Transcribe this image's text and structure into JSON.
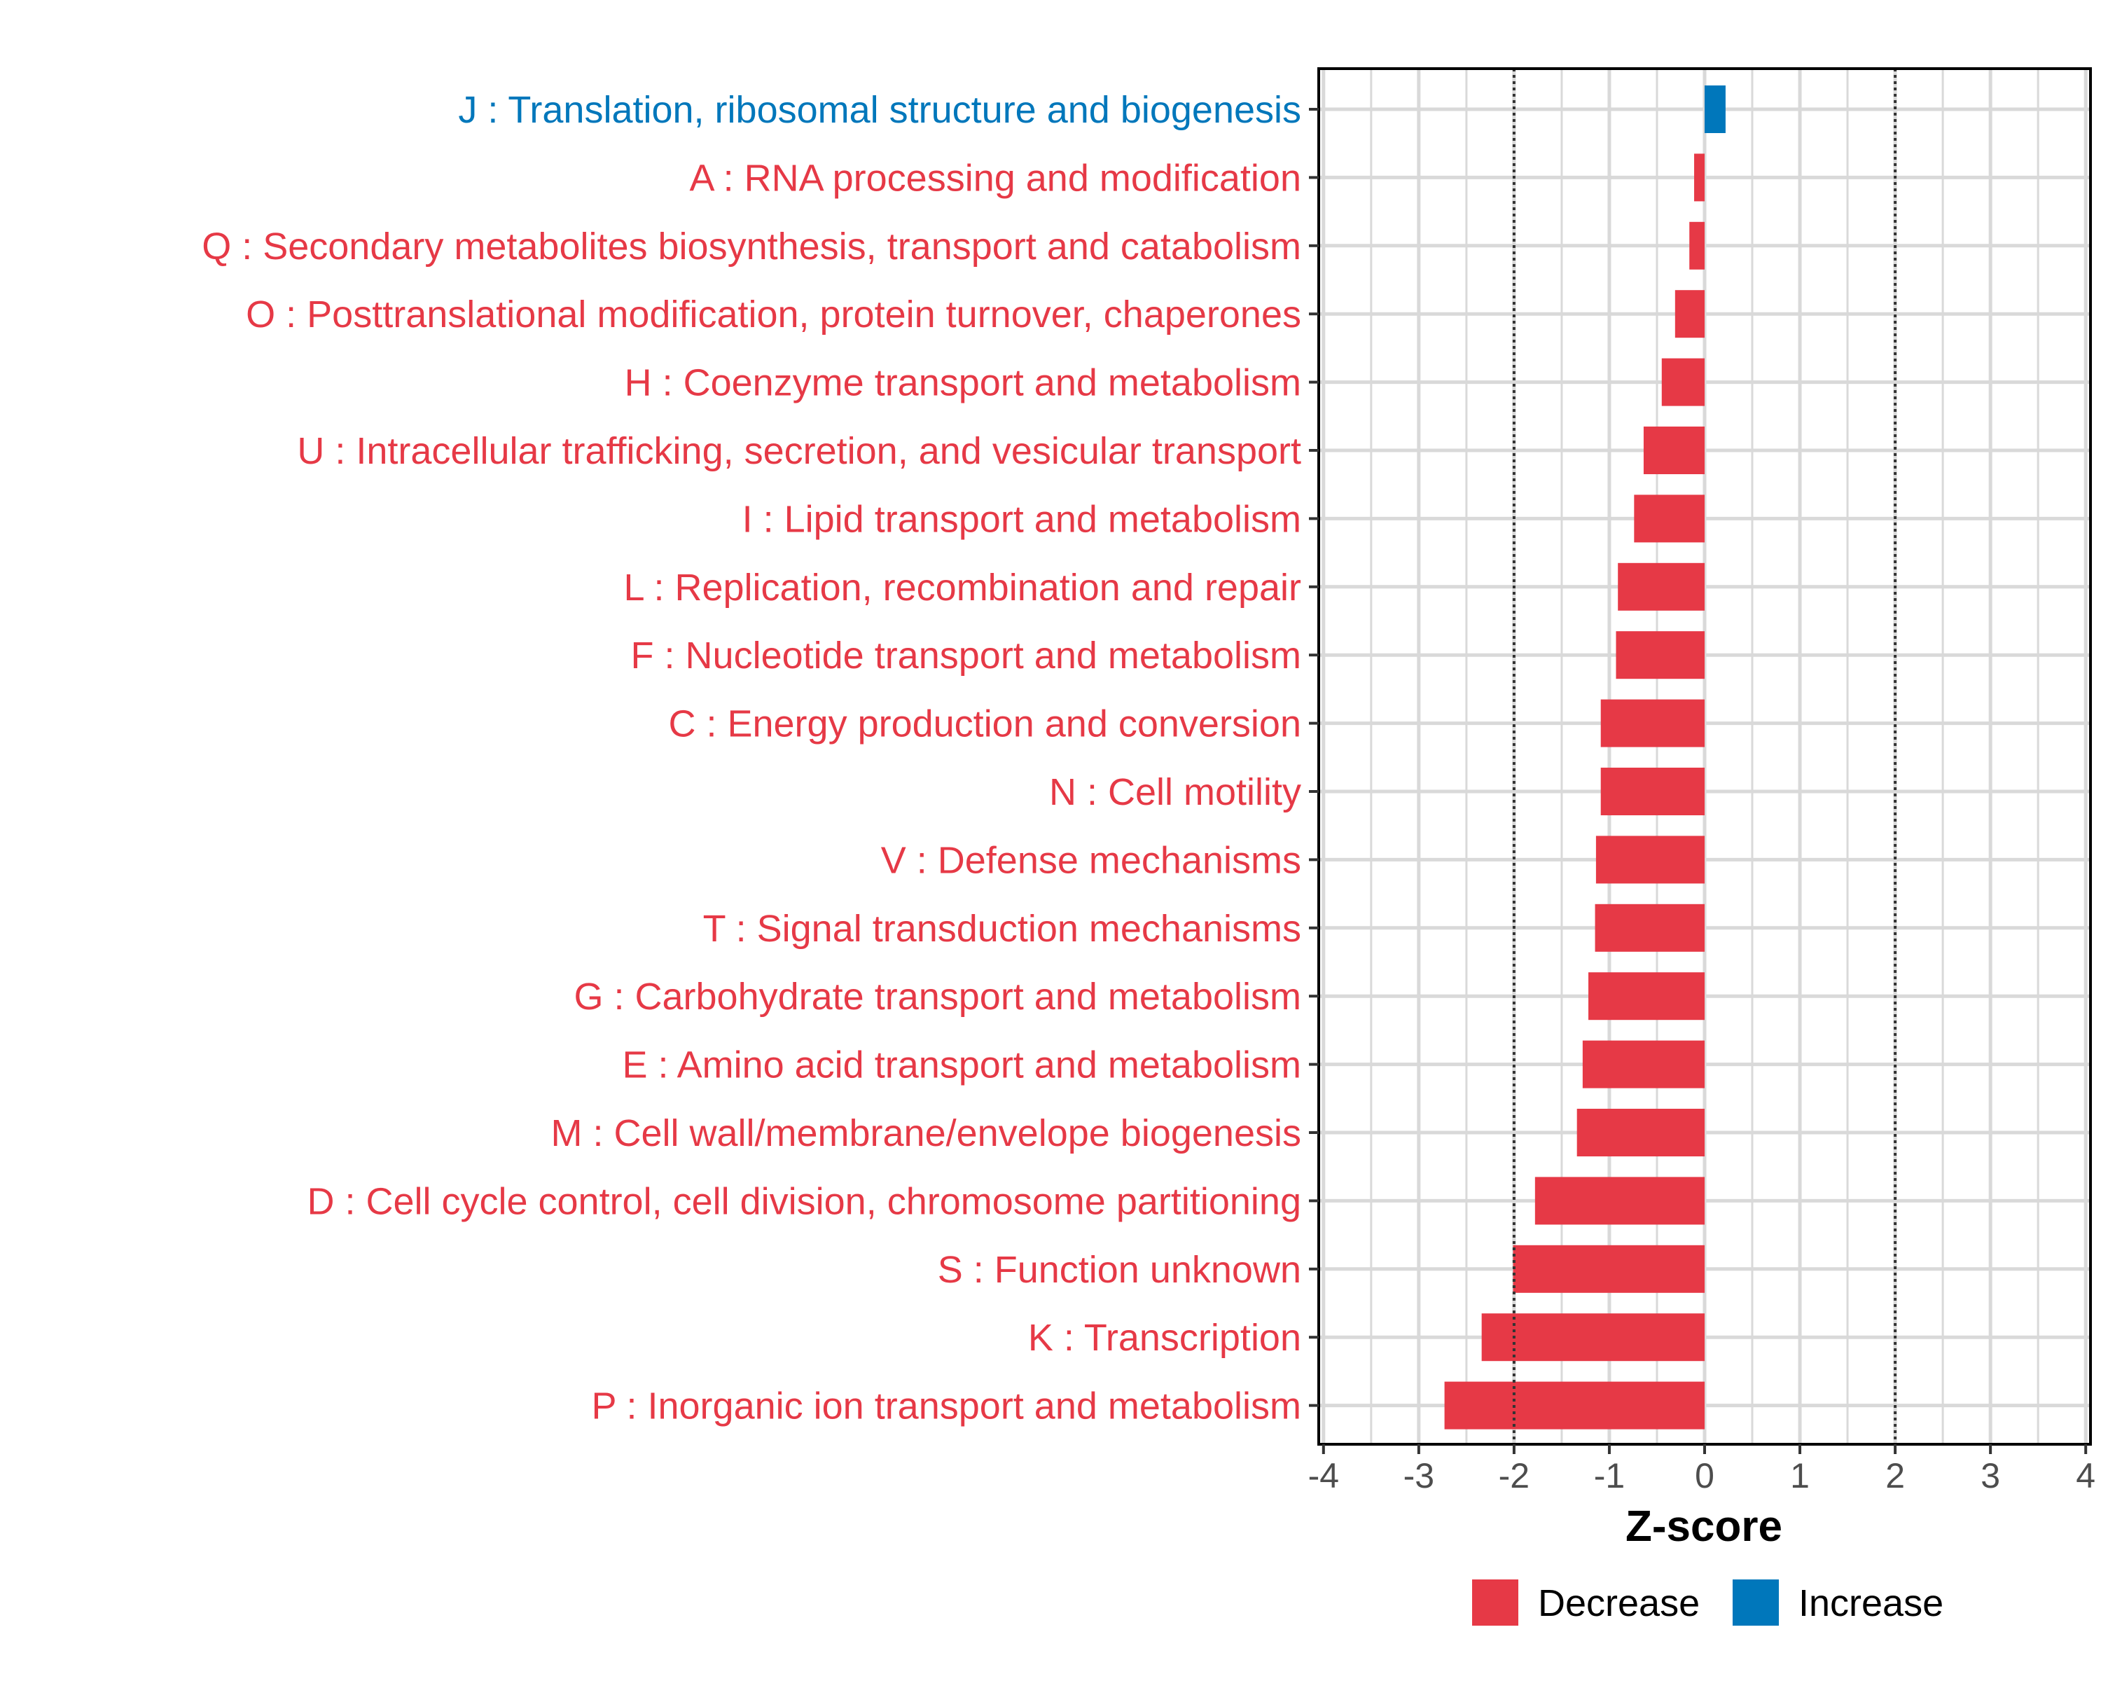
{
  "chart_data": {
    "type": "bar",
    "orientation": "horizontal",
    "title": "",
    "xlabel": "Z-score",
    "ylabel": "",
    "xlim": [
      -4.05,
      4.05
    ],
    "xticks": [
      -4,
      -3,
      -2,
      -1,
      0,
      1,
      2,
      3,
      4
    ],
    "xtick_labels": [
      "-4",
      "-3",
      "-2",
      "-1",
      "0",
      "1",
      "2",
      "3",
      "4"
    ],
    "reference_lines": [
      -2,
      2
    ],
    "grid": true,
    "legend_position": "bottom",
    "legend": [
      {
        "label": "Decrease",
        "color": "#E63946"
      },
      {
        "label": "Increase",
        "color": "#0077BB"
      }
    ],
    "categories": [
      "J : Translation, ribosomal structure and biogenesis",
      "A : RNA processing and modification",
      "Q : Secondary metabolites biosynthesis, transport and catabolism",
      "O : Posttranslational modification, protein turnover, chaperones",
      "H : Coenzyme transport and metabolism",
      "U : Intracellular trafficking, secretion, and vesicular transport",
      "I : Lipid transport and metabolism",
      "L : Replication, recombination and repair",
      "F : Nucleotide transport and metabolism",
      "C : Energy production and conversion",
      "N : Cell motility",
      "V : Defense mechanisms",
      "T : Signal transduction mechanisms",
      "G : Carbohydrate transport and metabolism",
      "E : Amino acid transport and metabolism",
      "M : Cell wall/membrane/envelope biogenesis",
      "D : Cell cycle control, cell division, chromosome partitioning",
      "S : Function unknown",
      "K : Transcription",
      "P : Inorganic ion transport and metabolism"
    ],
    "values": [
      0.22,
      -0.11,
      -0.16,
      -0.31,
      -0.45,
      -0.64,
      -0.74,
      -0.91,
      -0.93,
      -1.09,
      -1.09,
      -1.14,
      -1.15,
      -1.22,
      -1.28,
      -1.34,
      -1.78,
      -2.01,
      -2.34,
      -2.73
    ],
    "directions": [
      "Increase",
      "Decrease",
      "Decrease",
      "Decrease",
      "Decrease",
      "Decrease",
      "Decrease",
      "Decrease",
      "Decrease",
      "Decrease",
      "Decrease",
      "Decrease",
      "Decrease",
      "Decrease",
      "Decrease",
      "Decrease",
      "Decrease",
      "Decrease",
      "Decrease",
      "Decrease"
    ]
  }
}
